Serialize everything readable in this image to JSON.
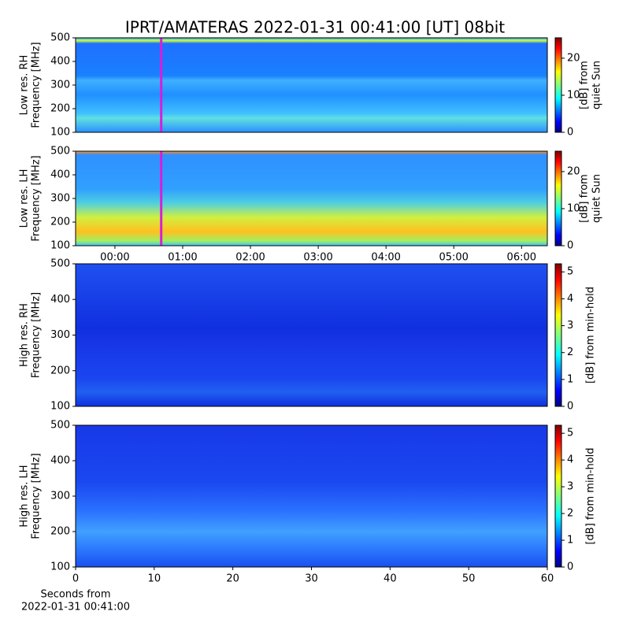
{
  "chart_data": [
    {
      "type": "heatmap",
      "title": "IPRT/AMATERAS 2022-01-31 00:41:00 [UT]   08bit",
      "ylabel": [
        "Low res. RH",
        "Frequency [MHz]"
      ],
      "ylim": [
        100,
        500
      ],
      "yticks": [
        100,
        200,
        300,
        400,
        500
      ],
      "xlim": [
        -0.58,
        6.38
      ],
      "markers": [
        {
          "x": 0.683,
          "color": "#d81ed8"
        }
      ],
      "colorbar": {
        "label": [
          "[dB] from",
          "quiet Sun"
        ],
        "lim": [
          0,
          25.5
        ],
        "ticks": [
          0,
          10,
          20
        ],
        "colormap": "jet"
      }
    },
    {
      "type": "heatmap",
      "ylabel": [
        "Low res. LH",
        "Frequency [MHz]"
      ],
      "ylim": [
        100,
        500
      ],
      "yticks": [
        100,
        200,
        300,
        400,
        500
      ],
      "xlim": [
        -0.58,
        6.38
      ],
      "xticks": [
        {
          "value": 0,
          "label": "00:00"
        },
        {
          "value": 1,
          "label": "01:00"
        },
        {
          "value": 2,
          "label": "02:00"
        },
        {
          "value": 3,
          "label": "03:00"
        },
        {
          "value": 4,
          "label": "04:00"
        },
        {
          "value": 5,
          "label": "05:00"
        },
        {
          "value": 6,
          "label": "06:00"
        }
      ],
      "markers": [
        {
          "x": 0.683,
          "color": "#d81ed8"
        }
      ],
      "colorbar": {
        "label": [
          "[dB] from",
          "quiet Sun"
        ],
        "lim": [
          0,
          25.5
        ],
        "ticks": [
          0,
          10,
          20
        ],
        "colormap": "jet"
      }
    },
    {
      "type": "heatmap",
      "ylabel": [
        "High res. RH",
        "Frequency [MHz]"
      ],
      "ylim": [
        100,
        500
      ],
      "yticks": [
        100,
        200,
        300,
        400,
        500
      ],
      "xlim": [
        0,
        60
      ],
      "colorbar": {
        "label": [
          "[dB] from min-hold"
        ],
        "lim": [
          0,
          5.3
        ],
        "ticks": [
          0,
          1,
          2,
          3,
          4,
          5
        ],
        "colormap": "jet"
      }
    },
    {
      "type": "heatmap",
      "ylabel": [
        "High res. LH",
        "Frequency [MHz]"
      ],
      "ylim": [
        100,
        500
      ],
      "yticks": [
        100,
        200,
        300,
        400,
        500
      ],
      "xlim": [
        0,
        60
      ],
      "xticks": [
        0,
        10,
        20,
        30,
        40,
        50,
        60
      ],
      "xlabel": [
        "Seconds from",
        "2022-01-31 00:41:00"
      ],
      "colorbar": {
        "label": [
          "[dB] from min-hold"
        ],
        "lim": [
          0,
          5.3
        ],
        "ticks": [
          0,
          1,
          2,
          3,
          4,
          5
        ],
        "colormap": "jet"
      }
    }
  ]
}
